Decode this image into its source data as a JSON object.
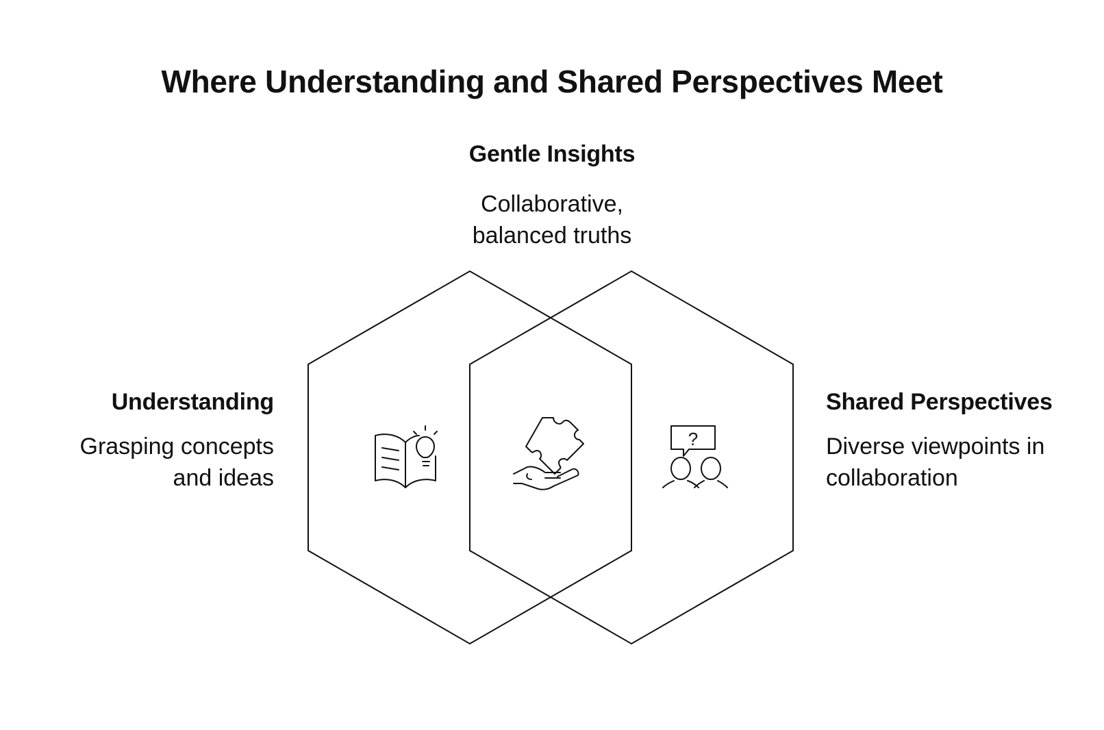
{
  "title": "Where Understanding and Shared Perspectives Meet",
  "intersection": {
    "heading": "Gentle Insights",
    "description_line1": "Collaborative,",
    "description_line2": "balanced truths",
    "icon": "puzzle-hand-icon"
  },
  "left": {
    "heading": "Understanding",
    "description_line1": "Grasping concepts",
    "description_line2": "and ideas",
    "icon": "book-lightbulb-icon"
  },
  "right": {
    "heading": "Shared Perspectives",
    "description_line1": "Diverse viewpoints in",
    "description_line2": "collaboration",
    "icon": "people-question-icon",
    "icon_glyph": "?"
  },
  "colors": {
    "stroke": "#111111",
    "background": "#ffffff"
  }
}
